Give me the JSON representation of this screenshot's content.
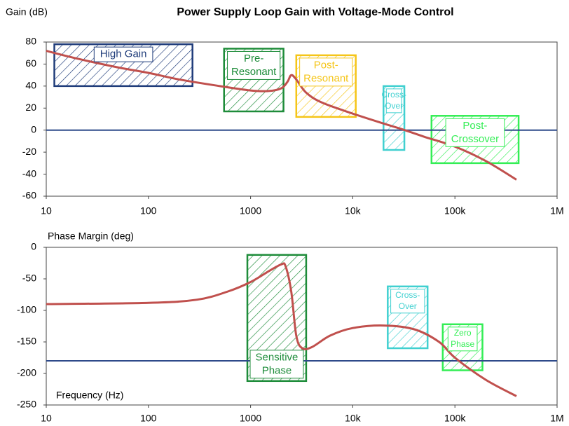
{
  "chart_data": [
    {
      "type": "line",
      "title": "Power Supply Loop Gain with Voltage-Mode Control",
      "ylabel": "Gain (dB)",
      "xscale": "log",
      "xlim": [
        10,
        1000000
      ],
      "xticks": [
        10,
        100,
        1000,
        {
          "value": 10000,
          "label": "10k"
        },
        {
          "value": 100000,
          "label": "100k"
        },
        {
          "value": 1000000,
          "label": "1M"
        }
      ],
      "ylim": [
        -60,
        80
      ],
      "yticks": [
        -60,
        -40,
        -20,
        0,
        20,
        40,
        60,
        80
      ],
      "color": "#c0504d",
      "x": [
        10,
        20,
        50,
        100,
        200,
        500,
        1000,
        1500,
        2000,
        2300,
        2500,
        2800,
        3500,
        5000,
        10000,
        20000,
        30000,
        50000,
        100000,
        200000,
        400000
      ],
      "values": [
        72,
        65,
        57,
        52,
        46,
        40,
        36,
        35.5,
        38,
        44,
        50,
        46,
        34,
        25,
        15,
        6,
        1,
        -6,
        -15,
        -28,
        -45
      ],
      "reference_line": {
        "value": 0,
        "color": "#2e4a8a"
      },
      "regions": [
        {
          "label": [
            "High Gain"
          ],
          "x": [
            12,
            270
          ],
          "y": [
            40,
            78
          ],
          "color": "#1f3c7a"
        },
        {
          "label": [
            "Pre-",
            "Resonant"
          ],
          "x": [
            550,
            2100
          ],
          "y": [
            17,
            74
          ],
          "color": "#1e8c3a"
        },
        {
          "label": [
            "Post-",
            "Resonant"
          ],
          "x": [
            2800,
            10700
          ],
          "y": [
            12,
            68
          ],
          "color": "#f5c518"
        },
        {
          "label": [
            "Cross-",
            "Over"
          ],
          "x": [
            20000,
            32000
          ],
          "y": [
            -18,
            40
          ],
          "color": "#40d0d0"
        },
        {
          "label": [
            "Post-",
            "Crossover"
          ],
          "x": [
            59000,
            420000
          ],
          "y": [
            -30,
            13
          ],
          "color": "#33ee55"
        }
      ]
    },
    {
      "type": "line",
      "ylabel": "Phase Margin (deg)",
      "xlabel": "Frequency (Hz)",
      "xscale": "log",
      "xlim": [
        10,
        1000000
      ],
      "xticks": [
        10,
        100,
        1000,
        {
          "value": 10000,
          "label": "10k"
        },
        {
          "value": 100000,
          "label": "100k"
        },
        {
          "value": 1000000,
          "label": "1M"
        }
      ],
      "ylim": [
        -250,
        0
      ],
      "yticks": [
        -250,
        -200,
        -150,
        -100,
        -50,
        0
      ],
      "color": "#c0504d",
      "x": [
        10,
        100,
        300,
        600,
        1000,
        1500,
        2000,
        2200,
        2500,
        2800,
        3200,
        4000,
        6000,
        10000,
        20000,
        40000,
        70000,
        100000,
        200000,
        400000
      ],
      "values": [
        -90,
        -88,
        -83,
        -70,
        -55,
        -38,
        -27,
        -30,
        -70,
        -140,
        -160,
        -158,
        -140,
        -128,
        -124,
        -130,
        -150,
        -175,
        -210,
        -236
      ],
      "reference_line": {
        "value": -180,
        "color": "#2e4a8a"
      },
      "regions": [
        {
          "label": [
            "Sensitive",
            "Phase"
          ],
          "x": [
            930,
            3500
          ],
          "y": [
            -12,
            -212
          ],
          "color": "#1e8c3a"
        },
        {
          "label": [
            "Cross-",
            "Over"
          ],
          "x": [
            22000,
            54000
          ],
          "y": [
            -62,
            -160
          ],
          "color": "#40d0d0"
        },
        {
          "label": [
            "Zero",
            "Phase"
          ],
          "x": [
            76000,
            186000
          ],
          "y": [
            -122,
            -195
          ],
          "color": "#33ee55"
        }
      ]
    }
  ]
}
